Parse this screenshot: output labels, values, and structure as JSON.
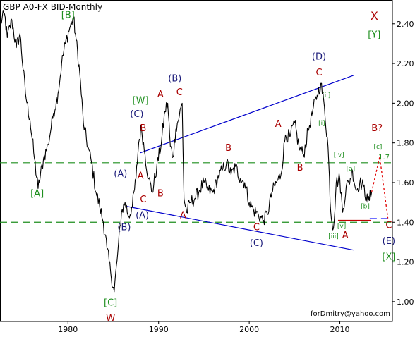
{
  "title": "GBP A0-FX BID-Monthly",
  "watermark": "forDmitry@yahoo.com",
  "chart_data": {
    "type": "line",
    "title": "GBP A0-FX BID-Monthly",
    "xlabel": "",
    "ylabel": "",
    "xlim": [
      1972.5,
      2015.8
    ],
    "ylim": [
      0.9,
      2.52
    ],
    "x_ticks": [
      1980,
      1990,
      2000,
      2010
    ],
    "y_ticks": [
      1.0,
      1.2,
      1.4,
      1.6,
      1.8,
      2.0,
      2.2,
      2.4
    ],
    "y_tick_labels": [
      "1.00",
      "1.20",
      "1.40",
      "1.60",
      "1.80",
      "2.00",
      "2.20",
      "2.40"
    ],
    "grid": false,
    "series": [
      {
        "color": "#000000",
        "points": [
          [
            1972.5,
            2.4
          ],
          [
            1973.0,
            2.45
          ],
          [
            1973.3,
            2.33
          ],
          [
            1973.8,
            2.42
          ],
          [
            1974.3,
            2.28
          ],
          [
            1974.7,
            2.35
          ],
          [
            1975.3,
            2.05
          ],
          [
            1975.8,
            1.92
          ],
          [
            1976.3,
            1.72
          ],
          [
            1976.7,
            1.57
          ],
          [
            1977.3,
            1.72
          ],
          [
            1977.8,
            1.79
          ],
          [
            1978.4,
            1.95
          ],
          [
            1978.9,
            2.05
          ],
          [
            1979.3,
            2.2
          ],
          [
            1979.7,
            2.3
          ],
          [
            1980.2,
            2.38
          ],
          [
            1980.6,
            2.43
          ],
          [
            1980.9,
            2.32
          ],
          [
            1981.3,
            2.15
          ],
          [
            1981.7,
            1.9
          ],
          [
            1982.2,
            1.78
          ],
          [
            1982.6,
            1.7
          ],
          [
            1983.1,
            1.55
          ],
          [
            1983.5,
            1.48
          ],
          [
            1983.9,
            1.4
          ],
          [
            1984.3,
            1.27
          ],
          [
            1984.7,
            1.15
          ],
          [
            1985.1,
            1.05
          ],
          [
            1985.5,
            1.25
          ],
          [
            1985.9,
            1.45
          ],
          [
            1986.3,
            1.5
          ],
          [
            1986.7,
            1.43
          ],
          [
            1987.1,
            1.48
          ],
          [
            1987.5,
            1.62
          ],
          [
            1987.8,
            1.8
          ],
          [
            1988.1,
            1.88
          ],
          [
            1988.5,
            1.74
          ],
          [
            1988.9,
            1.62
          ],
          [
            1989.3,
            1.55
          ],
          [
            1989.8,
            1.68
          ],
          [
            1990.3,
            1.8
          ],
          [
            1990.7,
            1.96
          ],
          [
            1991.0,
            2.0
          ],
          [
            1991.3,
            1.78
          ],
          [
            1991.6,
            1.73
          ],
          [
            1991.9,
            1.87
          ],
          [
            1992.3,
            1.94
          ],
          [
            1992.6,
            2.0
          ],
          [
            1992.8,
            1.52
          ],
          [
            1993.1,
            1.45
          ],
          [
            1993.5,
            1.5
          ],
          [
            1994.0,
            1.52
          ],
          [
            1994.5,
            1.56
          ],
          [
            1995.0,
            1.6
          ],
          [
            1995.5,
            1.56
          ],
          [
            1996.0,
            1.55
          ],
          [
            1996.5,
            1.62
          ],
          [
            1997.0,
            1.66
          ],
          [
            1997.5,
            1.7
          ],
          [
            1998.0,
            1.64
          ],
          [
            1998.5,
            1.68
          ],
          [
            1999.0,
            1.62
          ],
          [
            1999.5,
            1.6
          ],
          [
            2000.0,
            1.5
          ],
          [
            2000.5,
            1.46
          ],
          [
            2001.0,
            1.44
          ],
          [
            2001.5,
            1.41
          ],
          [
            2002.0,
            1.44
          ],
          [
            2002.5,
            1.55
          ],
          [
            2003.0,
            1.6
          ],
          [
            2003.5,
            1.64
          ],
          [
            2004.0,
            1.84
          ],
          [
            2004.5,
            1.83
          ],
          [
            2005.0,
            1.9
          ],
          [
            2005.5,
            1.78
          ],
          [
            2006.0,
            1.74
          ],
          [
            2006.5,
            1.86
          ],
          [
            2007.0,
            1.96
          ],
          [
            2007.5,
            2.04
          ],
          [
            2007.9,
            2.1
          ],
          [
            2008.3,
            1.98
          ],
          [
            2008.7,
            1.78
          ],
          [
            2009.0,
            1.45
          ],
          [
            2009.3,
            1.37
          ],
          [
            2009.6,
            1.6
          ],
          [
            2010.0,
            1.62
          ],
          [
            2010.3,
            1.45
          ],
          [
            2010.7,
            1.58
          ],
          [
            2011.0,
            1.6
          ],
          [
            2011.4,
            1.66
          ],
          [
            2011.8,
            1.56
          ],
          [
            2012.2,
            1.6
          ],
          [
            2012.6,
            1.58
          ],
          [
            2013.1,
            1.5
          ],
          [
            2013.5,
            1.55
          ]
        ]
      }
    ],
    "projection": {
      "color": "#e00000",
      "points": [
        [
          2013.5,
          1.55
        ],
        [
          2014.4,
          1.73
        ],
        [
          2015.3,
          1.42
        ]
      ]
    },
    "support_line": {
      "color": "#c00000",
      "points": [
        [
          2009.8,
          1.41
        ],
        [
          2013.4,
          1.41
        ]
      ]
    },
    "channel_lines": [
      {
        "color": "#0000cc",
        "points": [
          [
            1988.0,
            1.75
          ],
          [
            2011.5,
            2.14
          ]
        ]
      },
      {
        "color": "#0000cc",
        "points": [
          [
            1986.5,
            1.48
          ],
          [
            2011.5,
            1.26
          ]
        ]
      }
    ],
    "horizontal_levels": [
      {
        "value": 1.7,
        "label": "1.7",
        "color": "#1f8f1f",
        "style": "dashed"
      },
      {
        "value": 1.4,
        "label": "",
        "color": "#1f8f1f",
        "style": "dashed"
      },
      {
        "value": 1.42,
        "label": "",
        "color": "#7070ff",
        "style": "dashed",
        "x_range": [
          2013.3,
          2015.7
        ]
      }
    ],
    "annotations": [
      {
        "text": "[B]",
        "x": 1980.0,
        "y": 2.43,
        "color": "#1f8f1f",
        "size": 13
      },
      {
        "text": "[A]",
        "x": 1976.6,
        "y": 1.53,
        "color": "#1f8f1f",
        "size": 13
      },
      {
        "text": "[C]",
        "x": 1984.7,
        "y": 0.98,
        "color": "#1f8f1f",
        "size": 13
      },
      {
        "text": "W",
        "x": 1984.7,
        "y": 0.9,
        "color": "#aa0000",
        "size": 13
      },
      {
        "text": "X",
        "x": 2013.8,
        "y": 2.42,
        "color": "#aa0000",
        "size": 16
      },
      {
        "text": "[Y]",
        "x": 2013.8,
        "y": 2.33,
        "color": "#1f8f1f",
        "size": 13
      },
      {
        "text": "[W]",
        "x": 1988.0,
        "y": 2.0,
        "color": "#1f8f1f",
        "size": 13
      },
      {
        "text": "(B)",
        "x": 1991.8,
        "y": 2.11,
        "color": "#1b1b7a",
        "size": 13
      },
      {
        "text": "A",
        "x": 1990.2,
        "y": 2.03,
        "color": "#aa0000",
        "size": 13
      },
      {
        "text": "C",
        "x": 1992.3,
        "y": 2.04,
        "color": "#aa0000",
        "size": 13
      },
      {
        "text": "(C)",
        "x": 1987.6,
        "y": 1.93,
        "color": "#1b1b7a",
        "size": 13
      },
      {
        "text": "B",
        "x": 1988.3,
        "y": 1.86,
        "color": "#aa0000",
        "size": 13
      },
      {
        "text": "(A)",
        "x": 1985.8,
        "y": 1.63,
        "color": "#1b1b7a",
        "size": 13
      },
      {
        "text": "A",
        "x": 1988.0,
        "y": 1.62,
        "color": "#aa0000",
        "size": 13
      },
      {
        "text": "B",
        "x": 1990.2,
        "y": 1.53,
        "color": "#aa0000",
        "size": 13
      },
      {
        "text": "C",
        "x": 1988.3,
        "y": 1.5,
        "color": "#aa0000",
        "size": 13
      },
      {
        "text": "(A)",
        "x": 1988.2,
        "y": 1.42,
        "color": "#1b1b7a",
        "size": 13
      },
      {
        "text": "(B)",
        "x": 1986.2,
        "y": 1.36,
        "color": "#1b1b7a",
        "size": 13
      },
      {
        "text": "A",
        "x": 1992.7,
        "y": 1.42,
        "color": "#aa0000",
        "size": 13
      },
      {
        "text": "B",
        "x": 1997.7,
        "y": 1.76,
        "color": "#aa0000",
        "size": 13
      },
      {
        "text": "C",
        "x": 2000.8,
        "y": 1.36,
        "color": "#aa0000",
        "size": 13
      },
      {
        "text": "(C)",
        "x": 2000.8,
        "y": 1.28,
        "color": "#1b1b7a",
        "size": 13
      },
      {
        "text": "A",
        "x": 2003.2,
        "y": 1.88,
        "color": "#aa0000",
        "size": 13
      },
      {
        "text": "B",
        "x": 2005.6,
        "y": 1.66,
        "color": "#aa0000",
        "size": 13
      },
      {
        "text": "(D)",
        "x": 2007.7,
        "y": 2.22,
        "color": "#1b1b7a",
        "size": 13
      },
      {
        "text": "C",
        "x": 2007.7,
        "y": 2.14,
        "color": "#aa0000",
        "size": 13
      },
      {
        "text": "[ii]",
        "x": 2008.5,
        "y": 2.03,
        "color": "#1f8f1f",
        "size": 9
      },
      {
        "text": "[i]",
        "x": 2008.0,
        "y": 1.89,
        "color": "#1f8f1f",
        "size": 9
      },
      {
        "text": "[iv]",
        "x": 2009.9,
        "y": 1.73,
        "color": "#1f8f1f",
        "size": 9
      },
      {
        "text": "[a]",
        "x": 2011.2,
        "y": 1.66,
        "color": "#1f8f1f",
        "size": 9
      },
      {
        "text": "[b]",
        "x": 2012.8,
        "y": 1.47,
        "color": "#1f8f1f",
        "size": 9
      },
      {
        "text": "[v]",
        "x": 2010.2,
        "y": 1.37,
        "color": "#1f8f1f",
        "size": 9
      },
      {
        "text": "[iii]",
        "x": 2009.3,
        "y": 1.32,
        "color": "#1f8f1f",
        "size": 9
      },
      {
        "text": "A",
        "x": 2010.6,
        "y": 1.32,
        "color": "#aa0000",
        "size": 13
      },
      {
        "text": "B?",
        "x": 2014.1,
        "y": 1.86,
        "color": "#aa0000",
        "size": 13
      },
      {
        "text": "[c]",
        "x": 2014.2,
        "y": 1.77,
        "color": "#1f8f1f",
        "size": 9
      },
      {
        "text": "C",
        "x": 2015.4,
        "y": 1.37,
        "color": "#aa0000",
        "size": 13
      },
      {
        "text": "(E)",
        "x": 2015.4,
        "y": 1.29,
        "color": "#1b1b7a",
        "size": 13
      },
      {
        "text": "[X]",
        "x": 2015.4,
        "y": 1.21,
        "color": "#1f8f1f",
        "size": 13
      }
    ]
  }
}
